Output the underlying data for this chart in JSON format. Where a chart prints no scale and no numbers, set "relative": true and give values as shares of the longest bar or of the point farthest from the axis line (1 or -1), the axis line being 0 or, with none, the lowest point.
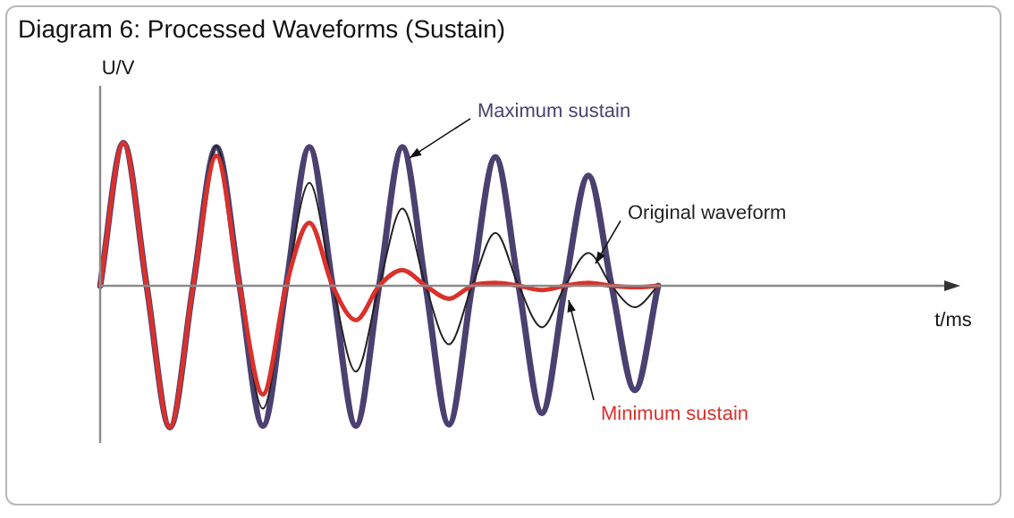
{
  "chart_data": {
    "type": "line",
    "title": "Diagram 6: Processed Waveforms (Sustain)",
    "xlabel": "t/ms",
    "ylabel": "U/V",
    "relative": true,
    "legend": false,
    "grid": false,
    "marker": "none",
    "line_style": "solid",
    "categories": [
      null,
      null,
      null,
      null,
      null,
      null,
      null,
      null,
      null,
      null,
      null,
      null,
      null,
      null,
      null,
      null,
      null,
      null,
      null,
      null,
      null,
      null,
      null,
      null,
      null,
      null,
      null,
      null,
      null,
      null,
      null,
      null,
      null,
      null,
      null,
      null,
      null,
      null
    ],
    "series": [
      {
        "name": "Maximum sustain",
        "color": "#4b4170",
        "values": [
          0,
          1.0,
          0,
          -0.99,
          0,
          0.97,
          0,
          -0.98,
          0,
          0.97,
          0,
          -0.98,
          0,
          0.97,
          0,
          -0.97,
          0,
          0.9,
          0,
          -0.89,
          0,
          0.77,
          0,
          -0.73,
          0,
          null,
          null,
          null,
          null,
          null,
          null,
          null,
          null,
          null,
          null,
          null,
          null,
          null
        ]
      },
      {
        "name": "Original waveform",
        "color": "#222222",
        "values": [
          0,
          1.0,
          0,
          -0.99,
          0,
          0.98,
          0,
          -0.86,
          0,
          0.72,
          0,
          -0.6,
          0,
          0.54,
          0,
          -0.41,
          0,
          0.37,
          0,
          -0.29,
          0,
          0.23,
          0,
          -0.15,
          0,
          null,
          null,
          null,
          null,
          null,
          null,
          null,
          null,
          null,
          null,
          null,
          null,
          null
        ]
      },
      {
        "name": "Minimum sustain",
        "color": "#d9312b",
        "values": [
          0,
          1.0,
          0,
          -0.99,
          0,
          0.91,
          0,
          -0.76,
          0,
          0.44,
          0,
          -0.24,
          0,
          0.11,
          0,
          -0.09,
          0,
          0.02,
          0,
          -0.03,
          0,
          0.02,
          0,
          -0.01,
          0,
          null,
          null,
          null,
          null,
          null,
          null,
          null,
          null,
          null,
          null,
          null,
          null,
          null
        ]
      }
    ]
  }
}
